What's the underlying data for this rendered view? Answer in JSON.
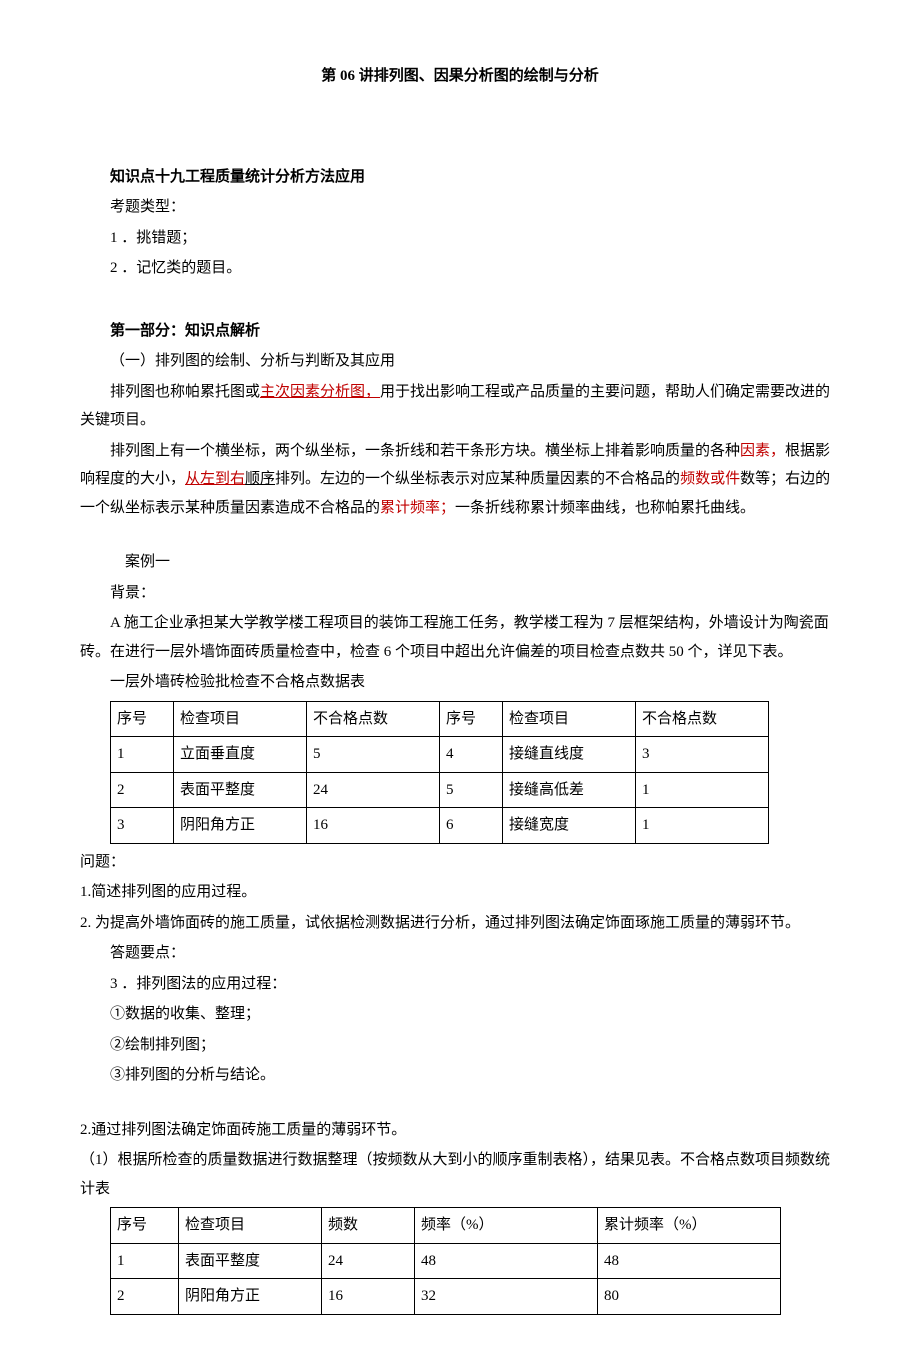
{
  "title": "第 06 讲排列图、因果分析图的绘制与分析",
  "heading1": "知识点十九工程质量统计分析方法应用",
  "exam_type_label": "考题类型：",
  "exam_type_1": "1 ．挑错题；",
  "exam_type_2": "2 ．记忆类的题目。",
  "part1_heading": "第一部分：知识点解析",
  "sub1": "（一）排列图的绘制、分析与判断及其应用",
  "para1_a": "排列图也称帕累托图或",
  "para1_b": "主次因素分析图，",
  "para1_c": "用于找出影响工程或产品质量的主要问题，帮助人们确定需要改进的关键项目。",
  "para2_a": "排列图上有一个横坐标，两个纵坐标，一条折线和若干条形方块。横坐标上排着影响质量的各种",
  "para2_b": "因素，",
  "para2_c": "根据影响程度的大小，",
  "para2_d": "从左到右",
  "para2_e": "顺序",
  "para2_f": "排列。左边的一个纵坐标表示对应某种质量因素的不合格品的",
  "para2_g": "频数或件",
  "para2_h": "数等；右边的一个纵坐标表示某种质量因素造成不合格品的",
  "para2_i": "累计频率；",
  "para2_j": "一条折线称累计频率曲线，也称帕累托曲线。",
  "case1_label": "案例一",
  "background_label": "背景：",
  "case1_text": "A 施工企业承担某大学教学楼工程项目的装饰工程施工任务，教学楼工程为 7 层框架结构，外墙设计为陶瓷面砖。在进行一层外墙饰面砖质量检查中，检查 6 个项目中超出允许偏差的项目检查点数共 50 个，详见下表。",
  "table1_caption": "一层外墙砖检验批检查不合格点数据表",
  "table1": {
    "headers": [
      "序号",
      "检查项目",
      "不合格点数",
      "序号",
      "检查项目",
      "不合格点数"
    ],
    "rows": [
      [
        "1",
        "立面垂直度",
        "5",
        "4",
        "接缝直线度",
        "3"
      ],
      [
        "2",
        "表面平整度",
        "24",
        "5",
        "接缝高低差",
        "1"
      ],
      [
        "3",
        "阴阳角方正",
        "16",
        "6",
        "接缝宽度",
        "1"
      ]
    ]
  },
  "question_label": "问题：",
  "q1": "1.简述排列图的应用过程。",
  "q2": "2. 为提高外墙饰面砖的施工质量，试依据检测数据进行分析，通过排列图法确定饰面琢施工质量的薄弱环节。",
  "answer_label": "答题要点：",
  "a3": "3 ．排列图法的应用过程：",
  "a3_1": "①数据的收集、整理；",
  "a3_2": "②绘制排列图；",
  "a3_3": "③排列图的分析与结论。",
  "a2": "2.通过排列图法确定饰面砖施工质量的薄弱环节。",
  "a2_1": "（1）根据所检查的质量数据进行数据整理（按频数从大到小的顺序重制表格），结果见表。不合格点数项目频数统计表",
  "table2": {
    "headers": [
      "序号",
      "检查项目",
      "频数",
      "频率（%）",
      "累计频率（%）"
    ],
    "rows": [
      [
        "1",
        "表面平整度",
        "24",
        "48",
        "48"
      ],
      [
        "2",
        "阴阳角方正",
        "16",
        "32",
        "80"
      ]
    ]
  },
  "colors": {
    "text": "#000000",
    "red": "#c00000",
    "background": "#ffffff",
    "border": "#000000"
  }
}
